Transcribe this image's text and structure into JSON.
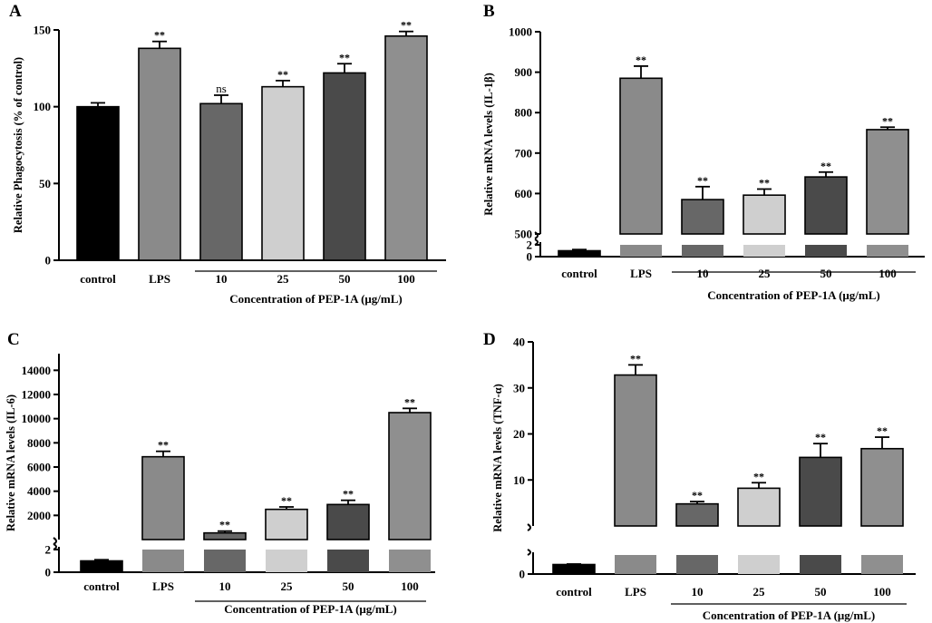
{
  "colors": {
    "bar_fills": [
      "#000000",
      "#8a8a8a",
      "#676767",
      "#cfcfcf",
      "#4a4a4a",
      "#8f8f8f"
    ],
    "axis": "#000000"
  },
  "chart_data": [
    {
      "id": "A",
      "type": "bar",
      "panel_label": "A",
      "categories": [
        "control",
        "LPS",
        "10",
        "25",
        "50",
        "100"
      ],
      "values": [
        100,
        138,
        102,
        113,
        122,
        146
      ],
      "errors": [
        2.5,
        4.5,
        5.5,
        4,
        6,
        3
      ],
      "significance": [
        "",
        "**",
        "ns",
        "**",
        "**",
        "**"
      ],
      "ylabel": "Relative Phagocytosis (% of control)",
      "xlabel": "Concentration of PEP-1A (μg/mL)",
      "ylim": [
        0,
        150
      ],
      "yticks": [
        "0",
        "50",
        "100",
        "150"
      ],
      "broken_axis": false
    },
    {
      "id": "B",
      "type": "bar",
      "panel_label": "B",
      "categories": [
        "control",
        "LPS",
        "10",
        "25",
        "50",
        "100"
      ],
      "values": [
        1,
        885,
        585,
        596,
        641,
        758
      ],
      "errors": [
        0.2,
        30,
        32,
        15,
        12,
        6
      ],
      "significance": [
        "",
        "**",
        "**",
        "**",
        "**",
        "**"
      ],
      "ylabel": "Relative mRNA levels (IL-1β)",
      "xlabel": "Concentration of PEP-1A (μg/mL)",
      "broken_axis": true,
      "lower_ylim": [
        0,
        2
      ],
      "upper_ylim": [
        500,
        1000
      ],
      "yticks_lower": [
        "0",
        "2"
      ],
      "yticks_upper": [
        "500",
        "600",
        "700",
        "800",
        "900",
        "1000"
      ]
    },
    {
      "id": "C",
      "type": "bar",
      "panel_label": "C",
      "categories": [
        "control",
        "LPS",
        "10",
        "25",
        "50",
        "100"
      ],
      "values": [
        1,
        6850,
        550,
        2500,
        2900,
        10500
      ],
      "errors": [
        0.1,
        450,
        150,
        200,
        350,
        350
      ],
      "significance": [
        "",
        "**",
        "**",
        "**",
        "**",
        "**"
      ],
      "ylabel": "Relative mRNA levels (IL-6)",
      "xlabel": "Concentration of PEP-1A (μg/mL)",
      "broken_axis": true,
      "lower_ylim": [
        0,
        2
      ],
      "upper_ylim": [
        0,
        15000
      ],
      "yticks_lower": [
        "0",
        "2"
      ],
      "yticks_upper": [
        "2000",
        "4000",
        "6000",
        "8000",
        "10000",
        "12000",
        "14000"
      ]
    },
    {
      "id": "D",
      "type": "bar",
      "panel_label": "D",
      "categories": [
        "control",
        "LPS",
        "10",
        "25",
        "50",
        "100"
      ],
      "values": [
        1,
        32.8,
        4.8,
        8.2,
        14.9,
        16.8
      ],
      "errors": [
        0.05,
        2.2,
        0.5,
        1.2,
        3.0,
        2.5
      ],
      "significance": [
        "",
        "**",
        "**",
        "**",
        "**",
        "**"
      ],
      "ylabel": "Relative mRNA levels (TNF-α)",
      "xlabel": "Concentration of PEP-1A (μg/mL)",
      "broken_axis": true,
      "lower_ylim": [
        0,
        2
      ],
      "upper_ylim": [
        0,
        40
      ],
      "yticks_lower": [
        "0"
      ],
      "yticks_upper": [
        "10",
        "20",
        "30",
        "40"
      ]
    }
  ]
}
